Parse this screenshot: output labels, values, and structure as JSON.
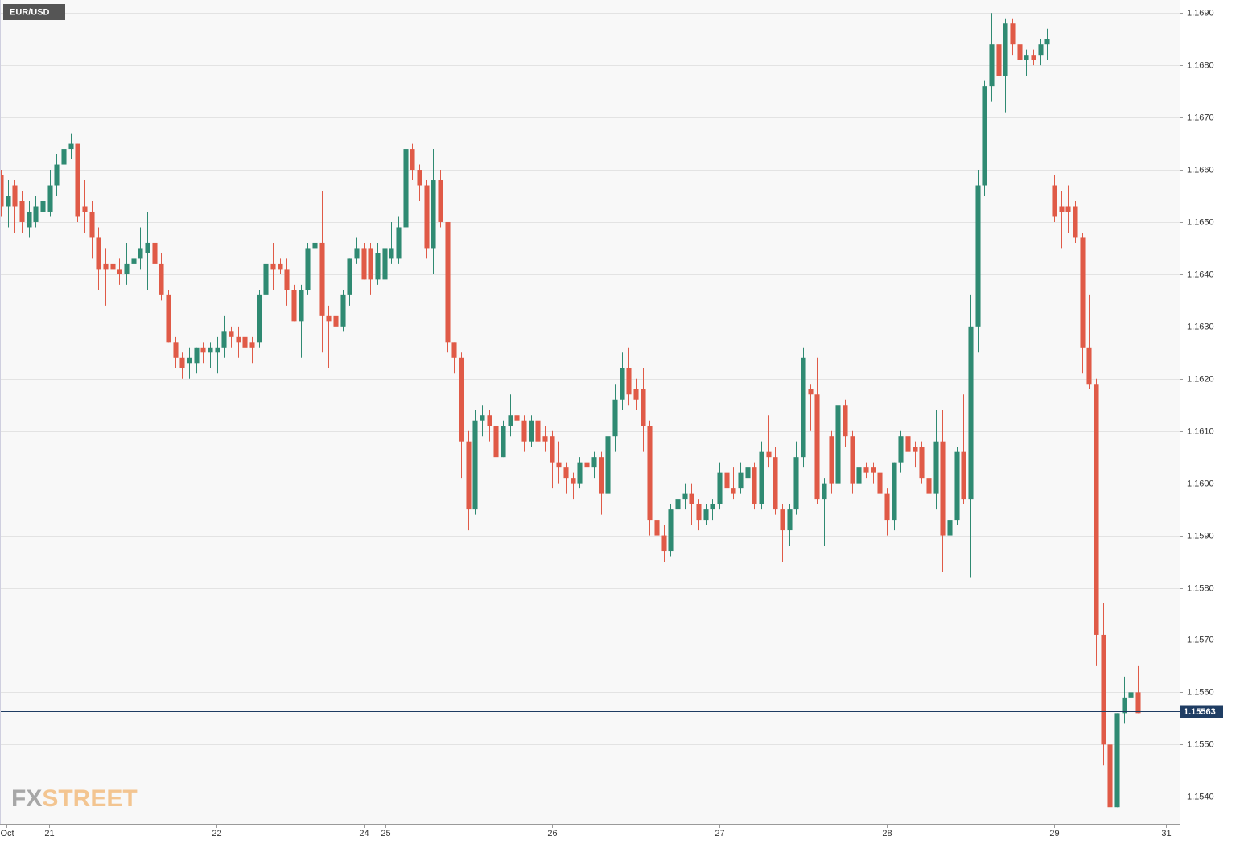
{
  "chart_data": {
    "type": "candlestick",
    "title": "EUR/USD",
    "watermark": {
      "fx": "FX",
      "street": "STREET"
    },
    "up_color": "#2f8a72",
    "down_color": "#e05a47",
    "grid": true,
    "last_price": 1.15563,
    "last_price_color": "#1f3d63",
    "xlim": [
      0,
      169
    ],
    "xticks": [
      {
        "value": 0.8,
        "label": "Oct"
      },
      {
        "value": 6.9,
        "label": "21"
      },
      {
        "value": 30.9,
        "label": "22"
      },
      {
        "value": 52,
        "label": "24"
      },
      {
        "value": 55.1,
        "label": "25"
      },
      {
        "value": 79,
        "label": "26"
      },
      {
        "value": 103,
        "label": "27"
      },
      {
        "value": 127,
        "label": "28"
      },
      {
        "value": 151,
        "label": "29"
      },
      {
        "value": 167,
        "label": "31"
      }
    ],
    "ylim": [
      1.15348,
      1.16925
    ],
    "yticks": [
      {
        "value": 1.154,
        "label": "1.1540"
      },
      {
        "value": 1.155,
        "label": "1.1550"
      },
      {
        "value": 1.156,
        "label": "1.1560"
      },
      {
        "value": 1.157,
        "label": "1.1570"
      },
      {
        "value": 1.158,
        "label": "1.1580"
      },
      {
        "value": 1.159,
        "label": "1.1590"
      },
      {
        "value": 1.16,
        "label": "1.1600"
      },
      {
        "value": 1.161,
        "label": "1.1610"
      },
      {
        "value": 1.162,
        "label": "1.1620"
      },
      {
        "value": 1.163,
        "label": "1.1630"
      },
      {
        "value": 1.164,
        "label": "1.1640"
      },
      {
        "value": 1.165,
        "label": "1.1650"
      },
      {
        "value": 1.166,
        "label": "1.1660"
      },
      {
        "value": 1.167,
        "label": "1.1670"
      },
      {
        "value": 1.168,
        "label": "1.1680"
      },
      {
        "value": 1.169,
        "label": "1.1690"
      }
    ],
    "open": [
      1.1659,
      1.1653,
      1.1657,
      1.1654,
      1.1649,
      1.165,
      1.1652,
      1.1652,
      1.1657,
      1.1661,
      1.1664,
      1.1665,
      1.1653,
      1.1652,
      1.1647,
      1.1642,
      1.1642,
      1.1641,
      1.164,
      1.1642,
      1.1643,
      1.1644,
      1.1646,
      1.1642,
      1.1636,
      1.1627,
      1.1624,
      1.1623,
      1.1623,
      1.1626,
      1.1625,
      1.1625,
      1.1626,
      1.1629,
      1.1628,
      1.1628,
      1.1627,
      1.1627,
      1.1636,
      1.1642,
      1.1642,
      1.1641,
      1.1637,
      1.1631,
      1.1637,
      1.1645,
      1.1646,
      1.1632,
      1.1632,
      1.163,
      1.1636,
      1.1643,
      1.1645,
      1.1645,
      1.1639,
      1.1639,
      1.1643,
      1.1643,
      1.1649,
      1.1664,
      1.166,
      1.1657,
      1.1645,
      1.1658,
      1.165,
      1.1627,
      1.1624,
      1.1608,
      1.1595,
      1.1612,
      1.1613,
      1.1611,
      1.1605,
      1.1611,
      1.1613,
      1.1612,
      1.1608,
      1.1612,
      1.1609,
      1.1609,
      1.1604,
      1.1603,
      1.1601,
      1.16,
      1.1604,
      1.1603,
      1.1605,
      1.1598,
      1.1609,
      1.1616,
      1.1622,
      1.1618,
      1.1618,
      1.1611,
      1.1593,
      1.159,
      1.1587,
      1.1595,
      1.1597,
      1.1598,
      1.1596,
      1.1593,
      1.1595,
      1.1596,
      1.1602,
      1.1599,
      1.1599,
      1.1601,
      1.1603,
      1.1596,
      1.1606,
      1.1605,
      1.1595,
      1.1591,
      1.1595,
      1.1605,
      1.1618,
      1.1617,
      1.1597,
      1.1609,
      1.16,
      1.1615,
      1.1609,
      1.16,
      1.1603,
      1.1603,
      1.1602,
      1.1598,
      1.1593,
      1.1604,
      1.1609,
      1.1607,
      1.1607,
      1.1601,
      1.1598,
      1.1608,
      1.159,
      1.1593,
      1.1606,
      1.1597,
      1.163,
      1.1657,
      1.1676,
      1.1684,
      1.1678,
      1.1688,
      1.1684,
      1.1681,
      1.1682,
      1.1682,
      1.1684,
      1.1657,
      1.1653,
      1.1653,
      1.1653,
      1.1647,
      1.1626,
      1.1619,
      1.1571,
      1.155,
      1.1538,
      1.1556,
      1.1559,
      1.156
    ],
    "high": [
      1.166,
      1.1658,
      1.1658,
      1.1656,
      1.1654,
      1.1655,
      1.1657,
      1.166,
      1.1663,
      1.1667,
      1.1667,
      1.1665,
      1.1658,
      1.1654,
      1.1649,
      1.1645,
      1.1649,
      1.1643,
      1.1646,
      1.1651,
      1.1649,
      1.1652,
      1.1648,
      1.1644,
      1.1637,
      1.1628,
      1.1625,
      1.1626,
      1.1626,
      1.1627,
      1.1627,
      1.1628,
      1.1632,
      1.163,
      1.163,
      1.163,
      1.1628,
      1.1637,
      1.1647,
      1.1646,
      1.1643,
      1.1643,
      1.1638,
      1.1638,
      1.1646,
      1.1651,
      1.1656,
      1.1634,
      1.1635,
      1.1637,
      1.1643,
      1.1647,
      1.1646,
      1.1646,
      1.1646,
      1.1646,
      1.165,
      1.1651,
      1.1665,
      1.1665,
      1.1661,
      1.1658,
      1.1664,
      1.166,
      1.165,
      1.1627,
      1.1625,
      1.161,
      1.1614,
      1.1615,
      1.1614,
      1.1612,
      1.1612,
      1.1617,
      1.1614,
      1.1613,
      1.1613,
      1.1613,
      1.1611,
      1.161,
      1.1608,
      1.1604,
      1.1602,
      1.1605,
      1.1605,
      1.1606,
      1.1606,
      1.161,
      1.1619,
      1.1625,
      1.1626,
      1.162,
      1.1622,
      1.1612,
      1.1594,
      1.1592,
      1.1596,
      1.1599,
      1.16,
      1.16,
      1.1597,
      1.1596,
      1.1597,
      1.1604,
      1.1604,
      1.1603,
      1.1604,
      1.1605,
      1.1604,
      1.1608,
      1.1613,
      1.1607,
      1.1596,
      1.1596,
      1.1608,
      1.1626,
      1.1619,
      1.1624,
      1.1601,
      1.161,
      1.1616,
      1.1616,
      1.161,
      1.1605,
      1.1604,
      1.1604,
      1.1603,
      1.1599,
      1.1604,
      1.161,
      1.161,
      1.1608,
      1.1608,
      1.1603,
      1.1614,
      1.1614,
      1.1594,
      1.1607,
      1.1617,
      1.1636,
      1.166,
      1.1677,
      1.169,
      1.1689,
      1.1689,
      1.1689,
      1.1684,
      1.1683,
      1.1683,
      1.1685,
      1.1687,
      1.1659,
      1.1656,
      1.1657,
      1.1654,
      1.1648,
      1.1636,
      1.162,
      1.1577,
      1.1552,
      1.1556,
      1.1563,
      1.156,
      1.1565
    ],
    "low": [
      1.1651,
      1.1649,
      1.1648,
      1.1648,
      1.1647,
      1.1649,
      1.165,
      1.1651,
      1.1655,
      1.166,
      1.1662,
      1.165,
      1.1648,
      1.1643,
      1.1637,
      1.1634,
      1.1637,
      1.1638,
      1.1638,
      1.1631,
      1.1641,
      1.1637,
      1.1635,
      1.1635,
      1.1627,
      1.1622,
      1.162,
      1.162,
      1.1621,
      1.1623,
      1.1622,
      1.1621,
      1.1624,
      1.1626,
      1.1624,
      1.1624,
      1.1623,
      1.1626,
      1.1634,
      1.1637,
      1.164,
      1.1634,
      1.1631,
      1.1624,
      1.1636,
      1.164,
      1.1625,
      1.1622,
      1.1625,
      1.1629,
      1.1634,
      1.1642,
      1.1639,
      1.1636,
      1.1638,
      1.1639,
      1.1642,
      1.1642,
      1.1645,
      1.1658,
      1.1654,
      1.1643,
      1.164,
      1.1649,
      1.1625,
      1.1621,
      1.1601,
      1.1591,
      1.1594,
      1.1609,
      1.1608,
      1.1604,
      1.1605,
      1.1609,
      1.1608,
      1.1606,
      1.1607,
      1.1606,
      1.1606,
      1.1599,
      1.16,
      1.1598,
      1.1597,
      1.1599,
      1.1601,
      1.1601,
      1.1594,
      1.1598,
      1.1606,
      1.1614,
      1.1615,
      1.1614,
      1.1606,
      1.159,
      1.1585,
      1.1585,
      1.1586,
      1.1593,
      1.1595,
      1.1592,
      1.1591,
      1.1592,
      1.1593,
      1.1595,
      1.1598,
      1.1597,
      1.1598,
      1.16,
      1.1595,
      1.1595,
      1.1603,
      1.1594,
      1.1585,
      1.1588,
      1.1594,
      1.1603,
      1.161,
      1.1596,
      1.1588,
      1.1598,
      1.1599,
      1.1607,
      1.1598,
      1.1599,
      1.1601,
      1.16,
      1.1591,
      1.159,
      1.1591,
      1.1602,
      1.1604,
      1.1603,
      1.16,
      1.1596,
      1.1595,
      1.1583,
      1.1582,
      1.1592,
      1.1596,
      1.1582,
      1.1625,
      1.1655,
      1.1673,
      1.1674,
      1.1671,
      1.1682,
      1.1679,
      1.1678,
      1.168,
      1.168,
      1.1681,
      1.165,
      1.1645,
      1.1648,
      1.1646,
      1.1621,
      1.1618,
      1.1565,
      1.1546,
      1.1535,
      1.1538,
      1.1554,
      1.1552,
      1.1556
    ],
    "close": [
      1.1653,
      1.1655,
      1.1653,
      1.165,
      1.1652,
      1.1653,
      1.1654,
      1.1657,
      1.1661,
      1.1664,
      1.1665,
      1.1651,
      1.1652,
      1.1647,
      1.1641,
      1.1641,
      1.1641,
      1.164,
      1.1642,
      1.1643,
      1.1645,
      1.1646,
      1.1642,
      1.1636,
      1.1627,
      1.1624,
      1.1622,
      1.1624,
      1.1626,
      1.1625,
      1.1626,
      1.1626,
      1.1629,
      1.1628,
      1.1627,
      1.1626,
      1.1626,
      1.1636,
      1.1642,
      1.1641,
      1.1641,
      1.1637,
      1.1631,
      1.1637,
      1.1645,
      1.1646,
      1.1632,
      1.1631,
      1.163,
      1.1636,
      1.1643,
      1.1645,
      1.1639,
      1.1639,
      1.1644,
      1.1645,
      1.1645,
      1.1649,
      1.1664,
      1.166,
      1.1657,
      1.1645,
      1.1658,
      1.165,
      1.1627,
      1.1624,
      1.1608,
      1.1595,
      1.1612,
      1.1613,
      1.1611,
      1.1605,
      1.1611,
      1.1613,
      1.1612,
      1.1608,
      1.1612,
      1.1608,
      1.1608,
      1.1604,
      1.1603,
      1.1601,
      1.16,
      1.1604,
      1.1603,
      1.1605,
      1.1598,
      1.1609,
      1.1616,
      1.1622,
      1.1617,
      1.1616,
      1.1611,
      1.1593,
      1.159,
      1.1587,
      1.1595,
      1.1597,
      1.1598,
      1.1596,
      1.1593,
      1.1595,
      1.1596,
      1.1602,
      1.1599,
      1.1598,
      1.1602,
      1.1603,
      1.1596,
      1.1606,
      1.1605,
      1.1595,
      1.1591,
      1.1595,
      1.1605,
      1.1624,
      1.1617,
      1.1597,
      1.16,
      1.16,
      1.1615,
      1.1609,
      1.16,
      1.1603,
      1.1602,
      1.1602,
      1.1598,
      1.1593,
      1.1604,
      1.1609,
      1.1606,
      1.1606,
      1.1601,
      1.1598,
      1.1608,
      1.159,
      1.1593,
      1.1606,
      1.1597,
      1.163,
      1.1657,
      1.1676,
      1.1684,
      1.1678,
      1.1688,
      1.1684,
      1.1681,
      1.1682,
      1.1681,
      1.1684,
      1.1685,
      1.1651,
      1.1652,
      1.1652,
      1.1647,
      1.1626,
      1.1619,
      1.1571,
      1.155,
      1.1538,
      1.1556,
      1.1559,
      1.156,
      1.1556
    ]
  }
}
